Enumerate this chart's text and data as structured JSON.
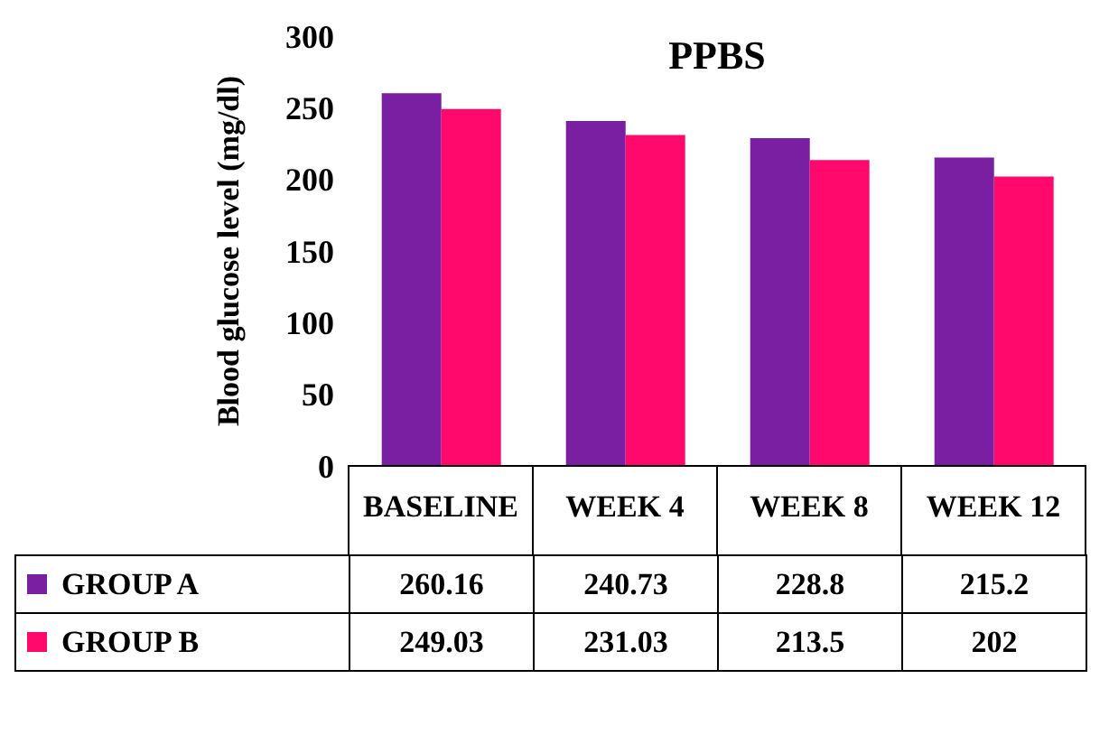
{
  "chart_data": {
    "type": "bar",
    "title": "PPBS",
    "ylabel": "Blood glucose level (mg/dl)",
    "categories": [
      "BASELINE",
      "WEEK 4",
      "WEEK 8",
      "WEEK 12"
    ],
    "series": [
      {
        "name": "GROUP A",
        "color": "#7b1fa2",
        "values": [
          260.16,
          240.73,
          228.8,
          215.2
        ]
      },
      {
        "name": "GROUP B",
        "color": "#ff0a6c",
        "values": [
          249.03,
          231.03,
          213.5,
          202
        ]
      }
    ],
    "ylim": [
      0,
      300
    ],
    "yticks": [
      0,
      50,
      100,
      150,
      200,
      250,
      300
    ],
    "data_labels": true,
    "legend": "bottom"
  }
}
